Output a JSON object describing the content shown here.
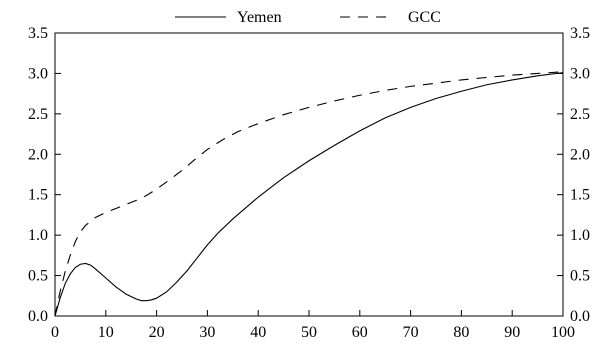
{
  "chart_data": {
    "type": "line",
    "title": "",
    "xlabel": "",
    "ylabel": "",
    "xlim": [
      0,
      100
    ],
    "ylim": [
      0,
      3.5
    ],
    "x_ticks": [
      "0",
      "10",
      "20",
      "30",
      "40",
      "50",
      "60",
      "70",
      "80",
      "90",
      "100"
    ],
    "y_ticks": [
      "0.0",
      "0.5",
      "1.0",
      "1.5",
      "2.0",
      "2.5",
      "3.0",
      "3.5"
    ],
    "grid": false,
    "legend_position": "top-center",
    "series": [
      {
        "name": "Yemen",
        "style": "solid",
        "x": [
          0,
          1,
          2,
          3,
          4,
          5,
          6,
          7,
          8,
          10,
          12,
          14,
          16,
          17,
          18,
          19,
          20,
          22,
          24,
          26,
          28,
          30,
          32,
          35,
          40,
          45,
          50,
          55,
          60,
          65,
          70,
          75,
          80,
          85,
          90,
          95,
          100
        ],
        "y": [
          0.0,
          0.22,
          0.4,
          0.52,
          0.6,
          0.64,
          0.65,
          0.63,
          0.58,
          0.47,
          0.36,
          0.27,
          0.21,
          0.19,
          0.19,
          0.2,
          0.22,
          0.3,
          0.42,
          0.56,
          0.72,
          0.88,
          1.02,
          1.2,
          1.47,
          1.71,
          1.92,
          2.11,
          2.29,
          2.45,
          2.58,
          2.69,
          2.78,
          2.86,
          2.92,
          2.97,
          3.01
        ]
      },
      {
        "name": "GCC",
        "style": "dashed",
        "x": [
          0,
          1,
          2,
          3,
          4,
          5,
          6,
          8,
          10,
          12,
          14,
          16,
          18,
          20,
          22,
          25,
          28,
          30,
          33,
          36,
          40,
          45,
          50,
          55,
          60,
          65,
          70,
          75,
          80,
          85,
          90,
          95,
          100
        ],
        "y": [
          0.0,
          0.3,
          0.55,
          0.75,
          0.92,
          1.04,
          1.12,
          1.22,
          1.28,
          1.33,
          1.38,
          1.43,
          1.49,
          1.57,
          1.66,
          1.8,
          1.96,
          2.06,
          2.18,
          2.28,
          2.38,
          2.49,
          2.58,
          2.66,
          2.73,
          2.79,
          2.84,
          2.88,
          2.92,
          2.95,
          2.98,
          3.0,
          3.02
        ]
      }
    ]
  }
}
